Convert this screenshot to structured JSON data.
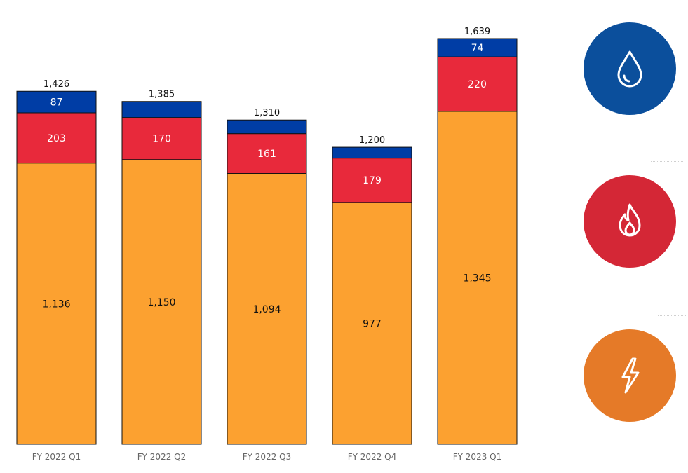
{
  "chart_data": {
    "type": "bar",
    "stacked": true,
    "categories": [
      "FY 2022 Q1",
      "FY 2022 Q2",
      "FY 2022 Q3",
      "FY 2022 Q4",
      "FY 2023 Q1"
    ],
    "series": [
      {
        "values": [
          1136,
          1150,
          1094,
          977,
          1345
        ],
        "color": "#FCA130",
        "labels": [
          "1,136",
          "1,150",
          "1,094",
          "977",
          "1,345"
        ],
        "label_color": "#111111"
      },
      {
        "values": [
          203,
          170,
          161,
          179,
          220
        ],
        "color": "#E8293B",
        "labels": [
          "203",
          "170",
          "161",
          "179",
          "220"
        ],
        "label_color": "#ffffff"
      },
      {
        "values": [
          87,
          65,
          55,
          44,
          74
        ],
        "color": "#003DA5",
        "labels": [
          "87",
          "",
          "",
          "",
          "74"
        ],
        "label_color": "#ffffff"
      }
    ],
    "totals": [
      "1,426",
      "1,385",
      "1,310",
      "1,200",
      "1,639"
    ],
    "ylim": [
      0,
      1639
    ],
    "grid": false,
    "legend": "icons-right"
  },
  "legend_icons": [
    {
      "icon": "water-drop-icon",
      "color": "#0B4F9C"
    },
    {
      "icon": "flame-icon",
      "color": "#D42736"
    },
    {
      "icon": "lightning-bolt-icon",
      "color": "#E57A28"
    }
  ]
}
